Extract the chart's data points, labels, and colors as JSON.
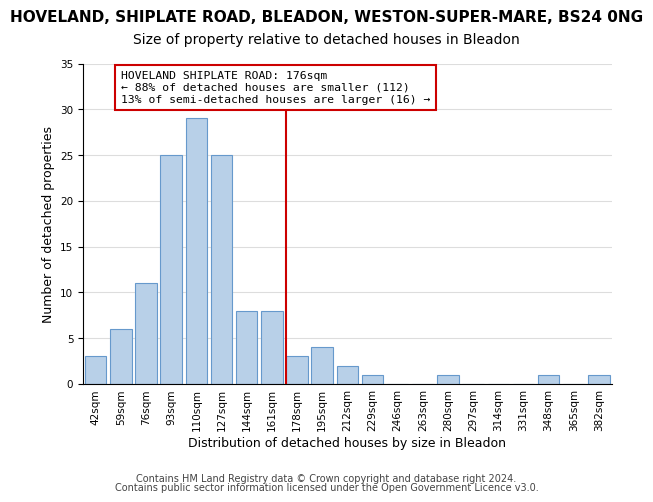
{
  "title": "HOVELAND, SHIPLATE ROAD, BLEADON, WESTON-SUPER-MARE, BS24 0NG",
  "subtitle": "Size of property relative to detached houses in Bleadon",
  "xlabel": "Distribution of detached houses by size in Bleadon",
  "ylabel": "Number of detached properties",
  "bar_labels": [
    "42sqm",
    "59sqm",
    "76sqm",
    "93sqm",
    "110sqm",
    "127sqm",
    "144sqm",
    "161sqm",
    "178sqm",
    "195sqm",
    "212sqm",
    "229sqm",
    "246sqm",
    "263sqm",
    "280sqm",
    "297sqm",
    "314sqm",
    "331sqm",
    "348sqm",
    "365sqm",
    "382sqm"
  ],
  "bar_values": [
    3,
    6,
    11,
    25,
    29,
    25,
    8,
    8,
    3,
    4,
    2,
    1,
    0,
    0,
    1,
    0,
    0,
    0,
    1,
    0,
    1
  ],
  "bar_color": "#b8d0e8",
  "bar_edge_color": "#6699cc",
  "vline_pos": 7.575,
  "vline_color": "#cc0000",
  "annotation_text": "HOVELAND SHIPLATE ROAD: 176sqm\n← 88% of detached houses are smaller (112)\n13% of semi-detached houses are larger (16) →",
  "annotation_box_color": "#ffffff",
  "annotation_box_edge": "#cc0000",
  "ylim": [
    0,
    35
  ],
  "yticks": [
    0,
    5,
    10,
    15,
    20,
    25,
    30,
    35
  ],
  "footer_line1": "Contains HM Land Registry data © Crown copyright and database right 2024.",
  "footer_line2": "Contains public sector information licensed under the Open Government Licence v3.0.",
  "background_color": "#ffffff",
  "grid_color": "#dddddd",
  "title_fontsize": 11,
  "subtitle_fontsize": 10,
  "xlabel_fontsize": 9,
  "ylabel_fontsize": 9,
  "tick_fontsize": 7.5,
  "footer_fontsize": 7
}
